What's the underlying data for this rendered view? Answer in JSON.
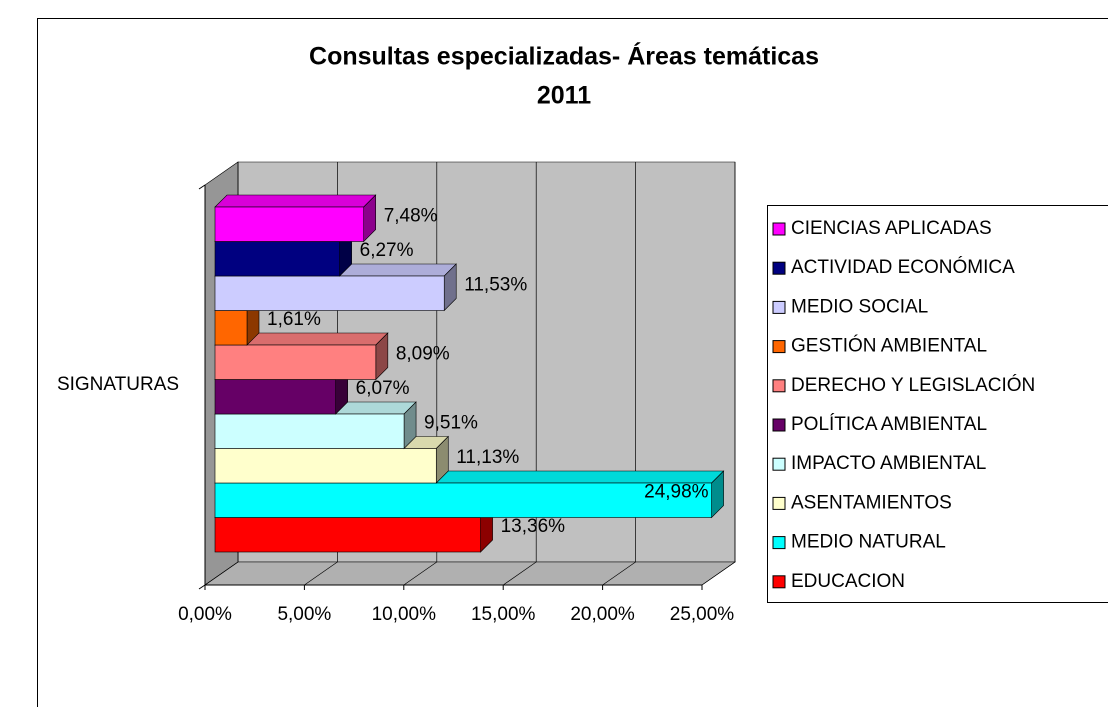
{
  "chart_data": {
    "type": "bar3d",
    "title": [
      "Consultas especializadas- Áreas temáticas",
      "2011"
    ],
    "categories": [
      "SIGNATURAS"
    ],
    "xlim": [
      0,
      25
    ],
    "xticks": [
      {
        "value": 0,
        "label": "0,00%"
      },
      {
        "value": 5,
        "label": "5,00%"
      },
      {
        "value": 10,
        "label": "10,00%"
      },
      {
        "value": 15,
        "label": "15,00%"
      },
      {
        "value": 20,
        "label": "20,00%"
      },
      {
        "value": 25,
        "label": "25,00%"
      }
    ],
    "grid": true,
    "legend": "right",
    "series": [
      {
        "name": "CIENCIAS APLICADAS",
        "color": "#ff00ff",
        "values": [
          7.48
        ],
        "value_labels": [
          "7,48%"
        ]
      },
      {
        "name": "ACTIVIDAD ECONÓMICA",
        "color": "#000080",
        "values": [
          6.27
        ],
        "value_labels": [
          "6,27%"
        ]
      },
      {
        "name": "MEDIO SOCIAL",
        "color": "#ccccff",
        "values": [
          11.53
        ],
        "value_labels": [
          "11,53%"
        ]
      },
      {
        "name": "GESTIÓN AMBIENTAL",
        "color": "#ff6600",
        "values": [
          1.61
        ],
        "value_labels": [
          "1,61%"
        ]
      },
      {
        "name": "DERECHO Y LEGISLACIÓN",
        "color": "#ff8080",
        "values": [
          8.09
        ],
        "value_labels": [
          "8,09%"
        ]
      },
      {
        "name": "POLÍTICA AMBIENTAL",
        "color": "#660066",
        "values": [
          6.07
        ],
        "value_labels": [
          "6,07%"
        ]
      },
      {
        "name": "IMPACTO AMBIENTAL",
        "color": "#ccffff",
        "values": [
          9.51
        ],
        "value_labels": [
          "9,51%"
        ]
      },
      {
        "name": "ASENTAMIENTOS",
        "color": "#ffffcc",
        "values": [
          11.13
        ],
        "value_labels": [
          "11,13%"
        ]
      },
      {
        "name": "MEDIO NATURAL",
        "color": "#00ffff",
        "values": [
          24.98
        ],
        "value_labels": [
          "24,98%"
        ]
      },
      {
        "name": "EDUCACION",
        "color": "#ff0000",
        "values": [
          13.36
        ],
        "value_labels": [
          "13,36%"
        ]
      }
    ]
  }
}
